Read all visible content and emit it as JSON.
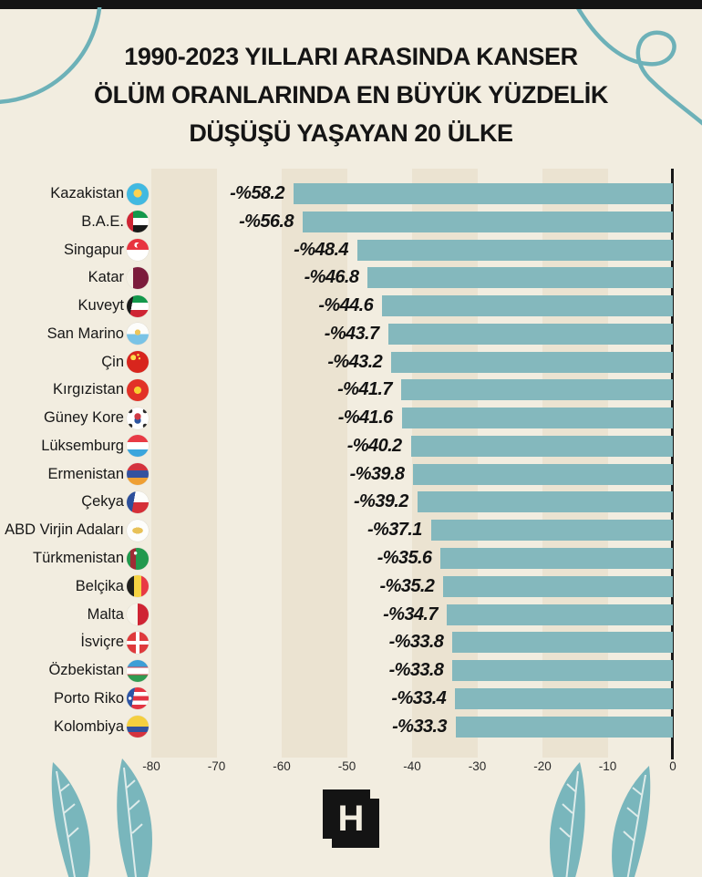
{
  "page": {
    "background_color": "#f2ede0",
    "stripe_color": "#ebe3d1",
    "top_bar_color": "#141414",
    "decor_teal": "#6db1b8",
    "feather_teal": "#79b6bc"
  },
  "title": {
    "line1": "1990-2023 YILLARI ARASINDA KANSER",
    "line2": "ÖLÜM ORANLARINDA EN BÜYÜK YÜZDELİK",
    "line3": "DÜŞÜŞÜ YAŞAYAN 20 ÜLKE"
  },
  "chart_data": {
    "type": "bar",
    "orientation": "horizontal, bars right-aligned at zero axis",
    "title": "1990-2023 YILLARI ARASINDA KANSER ÖLÜM ORANLARINDA EN BÜYÜK YÜZDELİK DÜŞÜŞÜ YAŞAYAN 20 ÜLKE",
    "categories": [
      "Kazakistan",
      "B.A.E.",
      "Singapur",
      "Katar",
      "Kuveyt",
      "San Marino",
      "Çin",
      "Kırgızistan",
      "Güney Kore",
      "Lüksemburg",
      "Ermenistan",
      "Çekya",
      "ABD Virjin Adaları",
      "Türkmenistan",
      "Belçika",
      "Malta",
      "İsviçre",
      "Özbekistan",
      "Porto Riko",
      "Kolombiya"
    ],
    "values": [
      -58.2,
      -56.8,
      -48.4,
      -46.8,
      -44.6,
      -43.7,
      -43.2,
      -41.7,
      -41.6,
      -40.2,
      -39.8,
      -39.2,
      -37.1,
      -35.6,
      -35.2,
      -34.7,
      -33.8,
      -33.8,
      -33.4,
      -33.3
    ],
    "value_labels": [
      "-%58.2",
      "-%56.8",
      "-%48.4",
      "-%46.8",
      "-%44.6",
      "-%43.7",
      "-%43.2",
      "-%41.7",
      "-%41.6",
      "-%40.2",
      "-%39.8",
      "-%39.2",
      "-%37.1",
      "-%35.6",
      "-%35.2",
      "-%34.7",
      "-%33.8",
      "-%33.8",
      "-%33.4",
      "-%33.3"
    ],
    "xlabel": "",
    "ylabel": "",
    "xlim": [
      -80,
      0
    ],
    "x_ticks": [
      -80,
      -70,
      -60,
      -50,
      -40,
      -30,
      -20,
      -10,
      0
    ],
    "x_tick_labels": [
      "-80",
      "-70",
      "-60",
      "-50",
      "-40",
      "-30",
      "-20",
      "-10",
      "0"
    ],
    "bar_color": "#84b8bd",
    "band_color": "#ebe3d1",
    "grid": "alternating vertical beige bands every 10 units",
    "legend": "none"
  },
  "rows": [
    {
      "country": "Kazakistan",
      "value_label": "-%58.2",
      "flag_icon": "flag-kazakhstan-icon",
      "flag_css": "radial-gradient(circle at 50% 46%, #fdd250 0 25%, transparent 26%), #41b9e1"
    },
    {
      "country": "B.A.E.",
      "value_label": "-%56.8",
      "flag_icon": "flag-uae-icon",
      "flag_css": "linear-gradient(90deg, #cf2433 0 30%, transparent 30%), linear-gradient(180deg, #13984b 0 34%, #ffffff 34% 67%, #191919 67%)"
    },
    {
      "country": "Singapur",
      "value_label": "-%48.4",
      "flag_icon": "flag-singapore-icon",
      "flag_css": "radial-gradient(circle at 56% 30%, #e8343f 0 11%, transparent 12%), radial-gradient(circle at 47% 28%, #ffffff 0 13%, transparent 14%), linear-gradient(180deg, #e8343f 0 50%, #ffffff 50%)"
    },
    {
      "country": "Katar",
      "value_label": "-%46.8",
      "flag_icon": "flag-qatar-icon",
      "flag_css": "linear-gradient(90deg, #f4f0e4 0 30%, #7c1c3c 30%)"
    },
    {
      "country": "Kuveyt",
      "value_label": "-%44.6",
      "flag_icon": "flag-kuwait-icon",
      "flag_css": "linear-gradient(100deg, #1b1b1b 0 26%, transparent 26.5%), linear-gradient(180deg, #13984b 0 33%, #ffffff 33% 66%, #cf2433 66%)"
    },
    {
      "country": "San Marino",
      "value_label": "-%43.7",
      "flag_icon": "flag-san-marino-icon",
      "flag_css": "radial-gradient(circle at 50% 44%, #edc65c 0 17%, transparent 18%), linear-gradient(180deg, #fdfdfb 0 52%, #79c3e6 52%)"
    },
    {
      "country": "Çin",
      "value_label": "-%43.2",
      "flag_icon": "flag-china-icon",
      "flag_css": "radial-gradient(circle at 30% 30%, #fcdc4c 0 12%, transparent 13%), radial-gradient(circle at 52% 18%, #fcdc4c 0 5%, transparent 6%), radial-gradient(circle at 58% 34%, #fcdc4c 0 5%, transparent 6%), #d8251d"
    },
    {
      "country": "Kırgızistan",
      "value_label": "-%41.7",
      "flag_icon": "flag-kyrgyzstan-icon",
      "flag_css": "radial-gradient(circle at 50% 50%, #f8d030 0 23%, transparent 24%), #e23227"
    },
    {
      "country": "Güney Kore",
      "value_label": "-%41.6",
      "flag_icon": "flag-south-korea-icon",
      "flag_css": "radial-gradient(circle at 50% 41%, #cf3a45 0 19%, transparent 20%), radial-gradient(circle at 50% 59%, #2c55a0 0 19%, transparent 20%), radial-gradient(circle at 16% 16%, #2b2b2b 0 8%, transparent 9%), radial-gradient(circle at 84% 16%, #2b2b2b 0 8%, transparent 9%), radial-gradient(circle at 16% 84%, #2b2b2b 0 8%, transparent 9%), radial-gradient(circle at 84% 84%, #2b2b2b 0 8%, transparent 9%), #ffffff"
    },
    {
      "country": "Lüksemburg",
      "value_label": "-%40.2",
      "flag_icon": "flag-luxembourg-icon",
      "flag_css": "linear-gradient(180deg, #e83a44 0 34%, #ffffff 34% 67%, #3ba6dd 67%)"
    },
    {
      "country": "Ermenistan",
      "value_label": "-%39.8",
      "flag_icon": "flag-armenia-icon",
      "flag_css": "linear-gradient(180deg, #d4333e 0 34%, #34529f 34% 67%, #ef9f33 67%)"
    },
    {
      "country": "Çekya",
      "value_label": "-%39.2",
      "flag_icon": "flag-czechia-icon",
      "flag_css": "linear-gradient(100deg, #2c4f9b 0 34%, transparent 34.5%), linear-gradient(180deg, #fdfdfb 0 50%, #d52f38 50%)"
    },
    {
      "country": "ABD Virjin Adaları",
      "value_label": "-%37.1",
      "flag_icon": "flag-us-virgin-islands-icon",
      "flag_css": "radial-gradient(ellipse 40% 24% at 50% 50%, #e8c158 0 60%, transparent 61%), #fdfdfb"
    },
    {
      "country": "Türkmenistan",
      "value_label": "-%35.6",
      "flag_icon": "flag-turkmenistan-icon",
      "flag_css": "radial-gradient(circle at 40% 24%, #ffffff 0 7%, transparent 8%), linear-gradient(90deg, transparent 0 16%, #9f2b35 16% 42%, transparent 42%), #22994d"
    },
    {
      "country": "Belçika",
      "value_label": "-%35.2",
      "flag_icon": "flag-belgium-icon",
      "flag_css": "linear-gradient(90deg, #20201e 0 34%, #f6d343 34% 67%, #e83a44 67%)"
    },
    {
      "country": "Malta",
      "value_label": "-%34.7",
      "flag_icon": "flag-malta-icon",
      "flag_css": "linear-gradient(90deg, #f7f4ea 0 50%, #cf2433 50%)"
    },
    {
      "country": "İsviçre",
      "value_label": "-%33.8",
      "flag_icon": "flag-switzerland-icon",
      "flag_css": "linear-gradient(90deg, transparent 0 41%, #ffffff 41% 59%, transparent 59%), linear-gradient(180deg, transparent 0 41%, #ffffff 41% 59%, transparent 59%), #df3a3c"
    },
    {
      "country": "Özbekistan",
      "value_label": "-%33.8",
      "flag_icon": "flag-uzbekistan-icon",
      "flag_css": "linear-gradient(180deg, #3d9ed6 0 31%, #d2424c 31% 36%, #ffffff 36% 64%, #d2424c 64% 69%, #2f9c52 69%)"
    },
    {
      "country": "Porto Riko",
      "value_label": "-%33.4",
      "flag_icon": "flag-puerto-rico-icon",
      "flag_css": "radial-gradient(circle at 15% 50%, #ffffff 0 7%, transparent 8%), linear-gradient(100deg, #2d55a5 0 32%, transparent 32.5%), linear-gradient(180deg, #e33442 0 20%, #ffffff 20% 40%, #e33442 40% 60%, #ffffff 60% 80%, #e33442 80%)"
    },
    {
      "country": "Kolombiya",
      "value_label": "-%33.3",
      "flag_icon": "flag-colombia-icon",
      "flag_css": "linear-gradient(180deg, #f4cf3f 0 50%, #32529e 50% 75%, #d5333e 75%)"
    }
  ],
  "footer": {
    "logo_letter": "H",
    "logo_name": "Hürriyet H mark"
  }
}
